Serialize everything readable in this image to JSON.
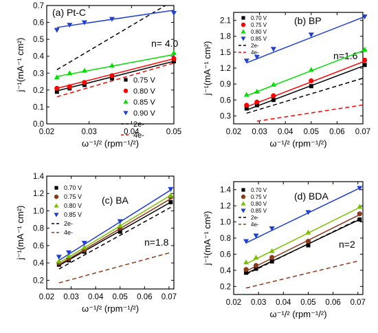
{
  "chart_data": [
    {
      "type": "scatter",
      "panel": "a",
      "title": "(a) Pt-C",
      "annotation": "n= 4.0",
      "xlabel": "ω⁻¹/² (rpm⁻¹/²)",
      "ylabel": "j⁻¹(mA⁻¹ cm²)",
      "xlim": [
        0.02,
        0.05
      ],
      "ylim": [
        0.0,
        0.7
      ],
      "xticks": [
        "0.02",
        "0.03",
        "0.04",
        "0.05"
      ],
      "yticks": [
        "0.0",
        "0.1",
        "0.2",
        "0.3",
        "0.4",
        "0.5",
        "0.6",
        "0.7"
      ],
      "legend_position": "bottom-right",
      "x": [
        0.0224,
        0.0254,
        0.0289,
        0.0354,
        0.05
      ],
      "series": [
        {
          "name": "0.75 V",
          "color": "#000000",
          "marker": "square",
          "values": [
            0.19,
            0.21,
            0.23,
            0.27,
            0.37
          ]
        },
        {
          "name": "0.80 V",
          "color": "#ff0000",
          "marker": "circle",
          "values": [
            0.21,
            0.22,
            0.245,
            0.285,
            0.385
          ]
        },
        {
          "name": "0.85 V",
          "color": "#00dd00",
          "marker": "triangle-up",
          "values": [
            0.275,
            0.3,
            0.315,
            0.345,
            0.42
          ]
        },
        {
          "name": "0.90 V",
          "color": "#1f3fd0",
          "marker": "triangle-down",
          "values": [
            0.555,
            0.585,
            0.6,
            0.62,
            0.655
          ]
        }
      ],
      "fits": [
        {
          "color": "#000000",
          "y": [
            0.195,
            0.37
          ]
        },
        {
          "color": "#ff0000",
          "y": [
            0.21,
            0.385
          ]
        },
        {
          "color": "#00dd00",
          "y": [
            0.28,
            0.41
          ]
        },
        {
          "color": "#1f3fd0",
          "y": [
            0.57,
            0.672
          ]
        }
      ],
      "ref_lines": [
        {
          "name": "2e-",
          "color": "#000000",
          "x": [
            0.0224,
            0.05
          ],
          "y": [
            0.32,
            0.73
          ]
        },
        {
          "name": "4e-",
          "color": "#ff0000",
          "x": [
            0.0224,
            0.05
          ],
          "y": [
            0.16,
            0.36
          ]
        }
      ]
    },
    {
      "type": "scatter",
      "panel": "b",
      "title": "(b) BP",
      "annotation": "n=1.6",
      "xlabel": "ω⁻¹/² (rpm⁻¹/²)",
      "ylabel": "j⁻¹(mA⁻¹ cm²)",
      "xlim": [
        0.02,
        0.07
      ],
      "ylim": [
        0.15,
        2.25
      ],
      "xticks": [
        "0.02",
        "0.03",
        "0.04",
        "0.05",
        "0.06",
        "0.07"
      ],
      "yticks": [
        "0.3",
        "0.6",
        "0.9",
        "1.2",
        "1.5",
        "1.8",
        "2.1"
      ],
      "legend_position": "top-left",
      "x": [
        0.025,
        0.029,
        0.0354,
        0.05,
        0.0707
      ],
      "series": [
        {
          "name": "0.70 V",
          "color": "#000000",
          "marker": "square",
          "values": [
            0.44,
            0.5,
            0.6,
            0.86,
            1.26
          ]
        },
        {
          "name": "0.75 V",
          "color": "#ff0000",
          "marker": "circle",
          "values": [
            0.5,
            0.56,
            0.68,
            0.96,
            1.35
          ]
        },
        {
          "name": "0.80 V",
          "color": "#00dd00",
          "marker": "triangle-up",
          "values": [
            0.7,
            0.76,
            0.89,
            1.17,
            1.55
          ]
        },
        {
          "name": "0.85 V",
          "color": "#1f3fd0",
          "marker": "triangle-down",
          "values": [
            1.34,
            1.41,
            1.56,
            1.83,
            2.17
          ]
        }
      ],
      "fits": [
        {
          "color": "#000000",
          "y": [
            0.41,
            1.25
          ]
        },
        {
          "color": "#ff0000",
          "y": [
            0.47,
            1.33
          ]
        },
        {
          "color": "#00dd00",
          "y": [
            0.68,
            1.54
          ]
        },
        {
          "color": "#1f3fd0",
          "y": [
            1.3,
            2.17
          ]
        }
      ],
      "ref_lines": [
        {
          "name": "2e-",
          "color": "#000000",
          "x": [
            0.025,
            0.0707
          ],
          "y": [
            0.35,
            1.02
          ]
        },
        {
          "name": "4e-",
          "color": "#ff0000",
          "x": [
            0.029,
            0.0707
          ],
          "y": [
            0.2,
            0.51
          ]
        }
      ]
    },
    {
      "type": "scatter",
      "panel": "c",
      "title": "(c) BA",
      "annotation": "n=1.8",
      "xlabel": "ω⁻¹/² (rpm⁻¹/²)",
      "ylabel": "j⁻¹(mA⁻¹ cm²)",
      "xlim": [
        0.02,
        0.072
      ],
      "ylim": [
        0.1,
        1.4
      ],
      "xticks": [
        "0.02",
        "0.03",
        "0.04",
        "0.05",
        "0.06",
        "0.07"
      ],
      "yticks": [
        "0.2",
        "0.4",
        "0.6",
        "0.8",
        "1.0",
        "1.2",
        "1.4"
      ],
      "legend_position": "top-left",
      "x": [
        0.025,
        0.029,
        0.0354,
        0.05,
        0.0707
      ],
      "series": [
        {
          "name": "0.70 V",
          "color": "#000000",
          "marker": "square",
          "values": [
            0.38,
            0.43,
            0.53,
            0.76,
            1.1
          ]
        },
        {
          "name": "0.75 V",
          "color": "#8b3a1a",
          "marker": "circle",
          "values": [
            0.4,
            0.45,
            0.55,
            0.8,
            1.16
          ]
        },
        {
          "name": "0.80 V",
          "color": "#7cc000",
          "marker": "triangle-up",
          "values": [
            0.42,
            0.48,
            0.58,
            0.83,
            1.18
          ]
        },
        {
          "name": "0.85 V",
          "color": "#1f3fd0",
          "marker": "triangle-down",
          "values": [
            0.47,
            0.52,
            0.63,
            0.88,
            1.25
          ]
        }
      ],
      "fits": [
        {
          "color": "#000000",
          "y": [
            0.37,
            1.1
          ]
        },
        {
          "color": "#8b3a1a",
          "y": [
            0.38,
            1.14
          ]
        },
        {
          "color": "#7cc000",
          "y": [
            0.4,
            1.18
          ]
        },
        {
          "color": "#1f3fd0",
          "y": [
            0.43,
            1.24
          ]
        }
      ],
      "ref_lines": [
        {
          "name": "2e-",
          "color": "#000000",
          "x": [
            0.025,
            0.0707
          ],
          "y": [
            0.33,
            1.04
          ]
        },
        {
          "name": "4e-",
          "color": "#8b3a1a",
          "x": [
            0.025,
            0.0707
          ],
          "y": [
            0.17,
            0.52
          ]
        }
      ]
    },
    {
      "type": "scatter",
      "panel": "d",
      "title": "(d) BDA",
      "annotation": "n=2",
      "xlabel": "ω⁻¹/² (rpm⁻¹/²)",
      "ylabel": "j⁻¹(mA⁻¹ cm²)",
      "xlim": [
        0.02,
        0.072
      ],
      "ylim": [
        0.1,
        1.5
      ],
      "xticks": [
        "0.02",
        "0.03",
        "0.04",
        "0.05",
        "0.06",
        "0.07"
      ],
      "yticks": [
        "0.2",
        "0.4",
        "0.6",
        "0.8",
        "1.0",
        "1.2",
        "1.4"
      ],
      "legend_position": "top-left",
      "x": [
        0.025,
        0.029,
        0.0354,
        0.05,
        0.0707
      ],
      "series": [
        {
          "name": "0.70 V",
          "color": "#000000",
          "marker": "square",
          "values": [
            0.37,
            0.42,
            0.51,
            0.71,
            1.03
          ]
        },
        {
          "name": "0.75 V",
          "color": "#8b3a1a",
          "marker": "circle",
          "values": [
            0.41,
            0.46,
            0.56,
            0.76,
            1.1
          ]
        },
        {
          "name": "0.80 V",
          "color": "#7cc000",
          "marker": "triangle-up",
          "values": [
            0.5,
            0.56,
            0.64,
            0.87,
            1.19
          ]
        },
        {
          "name": "0.85 V",
          "color": "#1f3fd0",
          "marker": "triangle-down",
          "values": [
            0.76,
            0.83,
            0.92,
            1.12,
            1.42
          ]
        }
      ],
      "fits": [
        {
          "color": "#000000",
          "y": [
            0.36,
            1.03
          ]
        },
        {
          "color": "#8b3a1a",
          "y": [
            0.39,
            1.09
          ]
        },
        {
          "color": "#7cc000",
          "y": [
            0.48,
            1.18
          ]
        },
        {
          "color": "#1f3fd0",
          "y": [
            0.74,
            1.42
          ]
        }
      ],
      "ref_lines": [
        {
          "name": "2e-",
          "color": "#000000",
          "x": [
            0.025,
            0.0707
          ],
          "y": [
            0.35,
            1.04
          ]
        },
        {
          "name": "4e-",
          "color": "#8b3a1a",
          "x": [
            0.025,
            0.0707
          ],
          "y": [
            0.18,
            0.52
          ]
        }
      ]
    }
  ]
}
